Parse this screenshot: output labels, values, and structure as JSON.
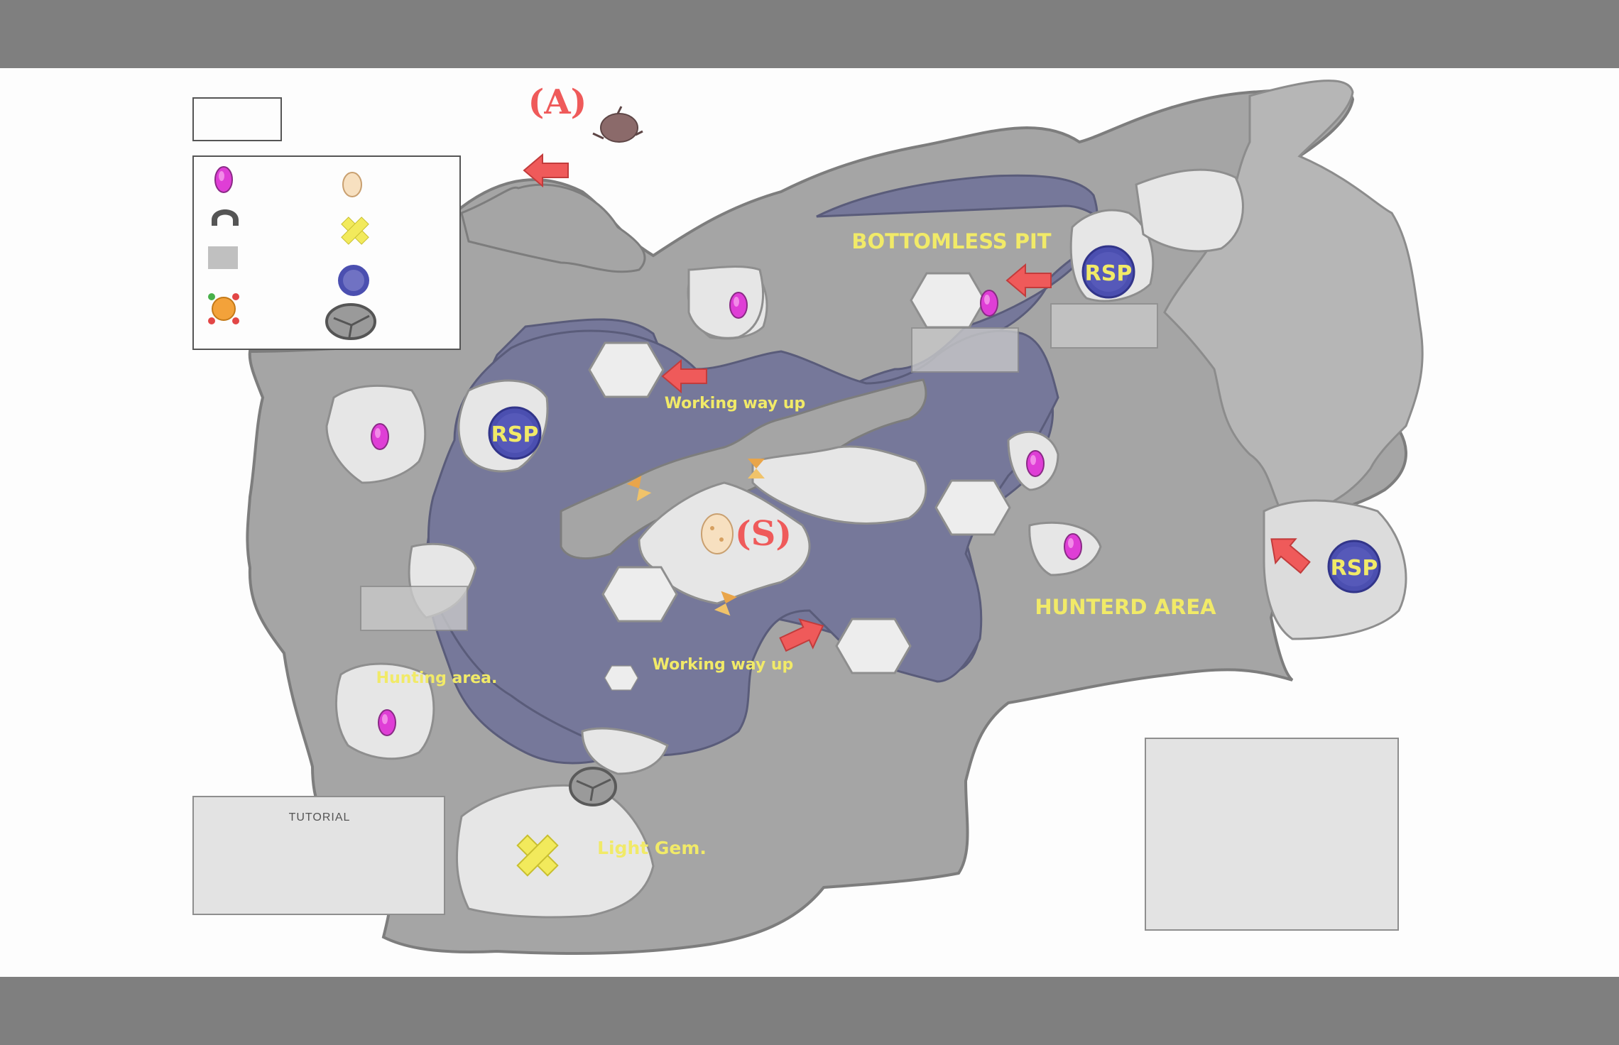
{
  "title_box": {
    "text": ""
  },
  "marker_a": "(A)",
  "marker_s": "(S)",
  "legend": {
    "items": [
      {
        "icon": "pink-gem-icon",
        "label": ""
      },
      {
        "icon": "egg-icon",
        "label": ""
      },
      {
        "icon": "gate-icon",
        "label": ""
      },
      {
        "icon": "x-marker-icon",
        "label": ""
      },
      {
        "icon": "gray-square-icon",
        "label": ""
      },
      {
        "icon": "rsp-portal-icon",
        "label": ""
      },
      {
        "icon": "orange-orb-icon",
        "label": ""
      },
      {
        "icon": "boulder-icon",
        "label": ""
      }
    ]
  },
  "map_labels": {
    "bottomless_pit": "BOTTOMLESS PIT",
    "hunters_area": "HUNTERD  AREA",
    "light_gem": "Light Gem.",
    "working_way_up_1": "Working way up",
    "working_way_up_2": "Working way up",
    "hunting_area": "Hunting area.",
    "rsp": "RSP"
  },
  "tutorial_box": {
    "title": "TUTORIAL",
    "lines": []
  },
  "features_box": {
    "title": "",
    "lines": [],
    "subtitle": "",
    "lines2": []
  },
  "colors": {
    "pit": "#76789a",
    "rock": "#a5a5a5",
    "rock_light": "#dcdcdc",
    "label_yellow": "#f1ea68",
    "arrow_red": "#ef5a5a",
    "portal_blue": "#4b4fb0",
    "gem_pink": "#df3ed6"
  }
}
